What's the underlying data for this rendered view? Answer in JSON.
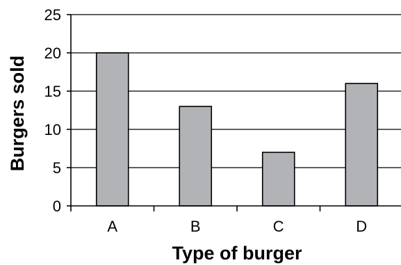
{
  "chart_data": {
    "type": "bar",
    "categories": [
      "A",
      "B",
      "C",
      "D"
    ],
    "values": [
      20,
      13,
      7,
      16
    ],
    "xlabel": "Type of burger",
    "ylabel": "Burgers sold",
    "ylim": [
      0,
      25
    ],
    "yticks": [
      0,
      5,
      10,
      15,
      20,
      25
    ],
    "grid": true,
    "colors": {
      "bar": "#b2b3b6",
      "outline": "#000000"
    }
  }
}
